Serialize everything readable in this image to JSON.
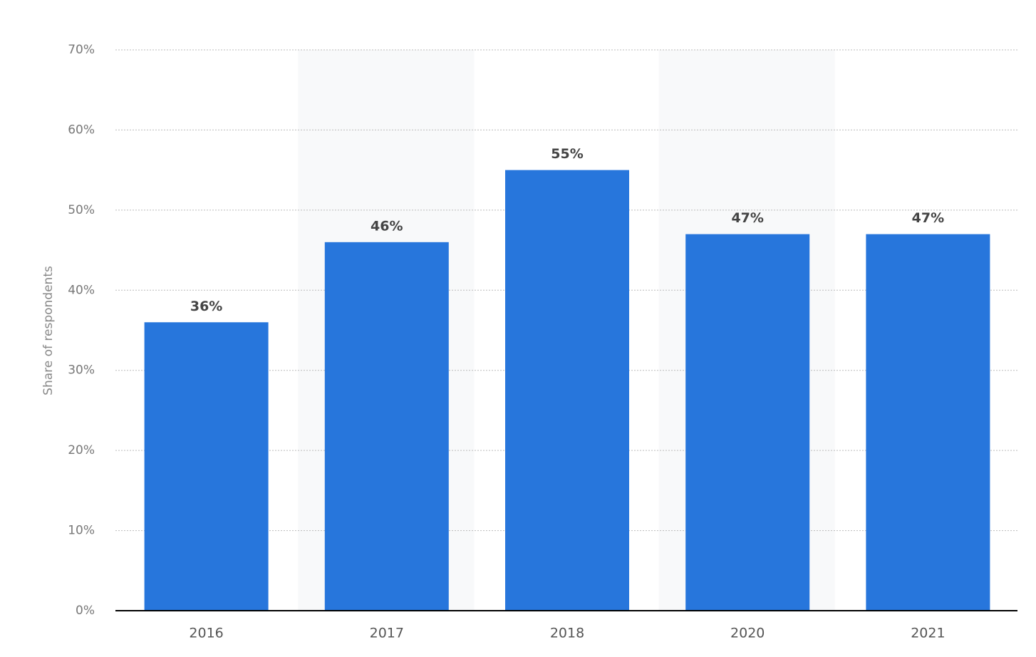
{
  "chart_data": {
    "type": "bar",
    "y_label": "Share of respondents",
    "categories": [
      "2016",
      "2017",
      "2018",
      "2020",
      "2021"
    ],
    "values": [
      36,
      46,
      55,
      47,
      47
    ],
    "value_labels": [
      "36%",
      "46%",
      "55%",
      "47%",
      "47%"
    ],
    "color": "#2776dc",
    "ylim": [
      0,
      70
    ],
    "yticks": [
      {
        "value": 0,
        "label": "0%"
      },
      {
        "value": 10,
        "label": "10%"
      },
      {
        "value": 20,
        "label": "20%"
      },
      {
        "value": 30,
        "label": "30%"
      },
      {
        "value": 40,
        "label": "40%"
      },
      {
        "value": 50,
        "label": "50%"
      },
      {
        "value": 60,
        "label": "60%"
      },
      {
        "value": 70,
        "label": "70%"
      }
    ],
    "grid": true
  }
}
